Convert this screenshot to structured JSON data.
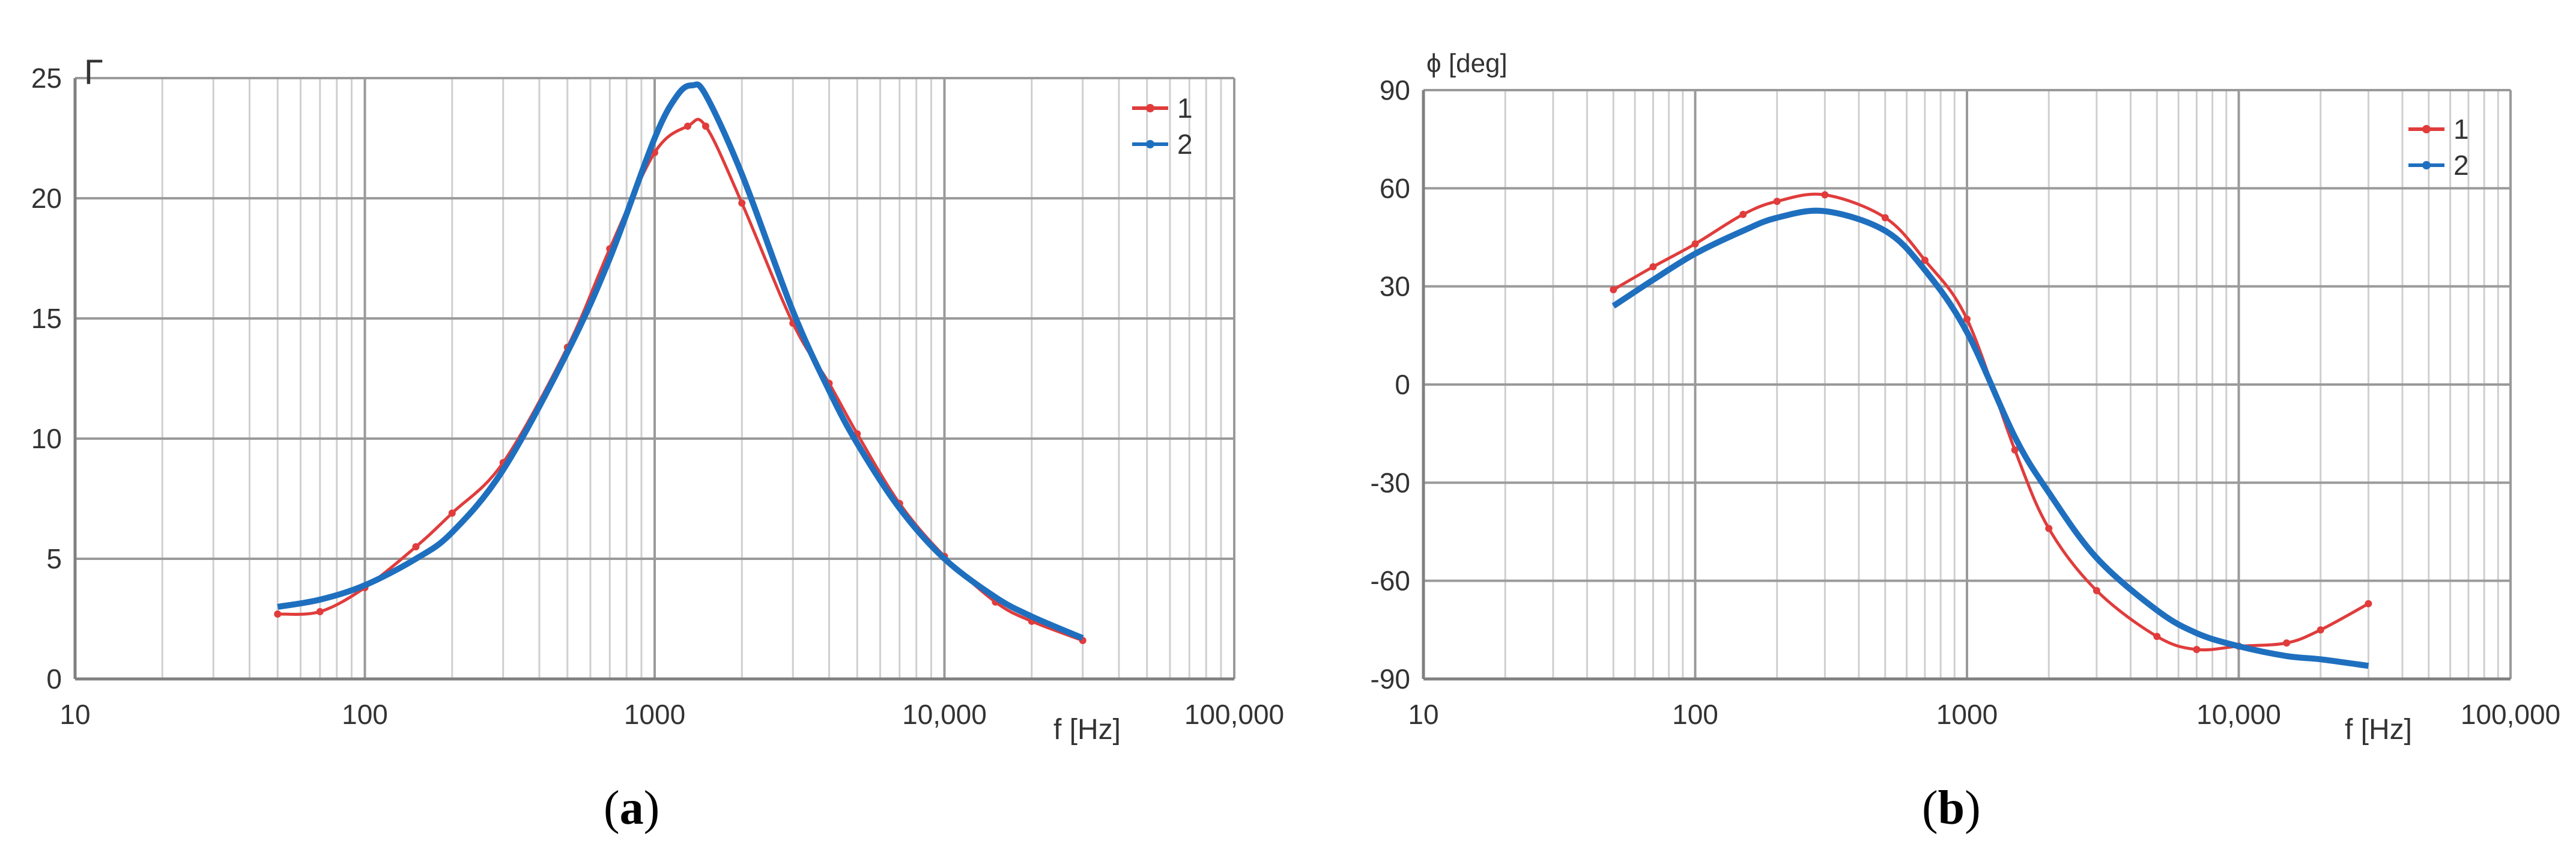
{
  "captions": {
    "a": {
      "open": "(",
      "letter": "a",
      "close": ")"
    },
    "b": {
      "open": "(",
      "letter": "b",
      "close": ")"
    }
  },
  "chart_data": [
    {
      "type": "line",
      "panel": "a",
      "ylabel": "Γ",
      "xlabel": "f [Hz]",
      "xscale": "log",
      "xlim": [
        10,
        100000
      ],
      "ylim": [
        0,
        25
      ],
      "yticks": [
        0,
        5,
        10,
        15,
        20,
        25
      ],
      "xticks": [
        10,
        100,
        1000,
        10000,
        100000
      ],
      "xtick_labels": [
        "10",
        "100",
        "1000",
        "10,000",
        "100,000"
      ],
      "grid": true,
      "legend_position": "top-right",
      "series": [
        {
          "name": "1",
          "color": "#e03c3c",
          "x": [
            50,
            70,
            100,
            150,
            200,
            300,
            500,
            700,
            1000,
            1300,
            1500,
            2000,
            3000,
            4000,
            5000,
            7000,
            10000,
            15000,
            20000,
            30000
          ],
          "y": [
            2.7,
            2.8,
            3.8,
            5.5,
            6.9,
            9.0,
            13.8,
            17.9,
            21.9,
            23.0,
            23.0,
            19.8,
            14.8,
            12.3,
            10.2,
            7.3,
            5.1,
            3.2,
            2.4,
            1.6
          ]
        },
        {
          "name": "2",
          "color": "#1f6fbf",
          "x": [
            50,
            70,
            100,
            150,
            200,
            300,
            500,
            700,
            1000,
            1200,
            1350,
            1500,
            2000,
            3000,
            4000,
            5000,
            7000,
            10000,
            15000,
            20000,
            30000
          ],
          "y": [
            3.0,
            3.3,
            3.9,
            5.0,
            6.1,
            8.7,
            13.6,
            17.5,
            22.5,
            24.3,
            24.7,
            24.3,
            21.0,
            15.3,
            12.0,
            9.8,
            7.1,
            5.0,
            3.4,
            2.6,
            1.7
          ]
        }
      ]
    },
    {
      "type": "line",
      "panel": "b",
      "ylabel": "ϕ [deg]",
      "xlabel": "f [Hz]",
      "xscale": "log",
      "xlim": [
        10,
        100000
      ],
      "ylim": [
        -90,
        90
      ],
      "yticks": [
        -90,
        -60,
        -30,
        0,
        30,
        60,
        90
      ],
      "xticks": [
        10,
        100,
        1000,
        10000,
        100000
      ],
      "xtick_labels": [
        "10",
        "100",
        "1000",
        "10,000",
        "100,000"
      ],
      "grid": true,
      "legend_position": "top-right",
      "series": [
        {
          "name": "1",
          "color": "#e03c3c",
          "x": [
            50,
            70,
            100,
            150,
            200,
            300,
            500,
            700,
            1000,
            1500,
            2000,
            3000,
            5000,
            7000,
            10000,
            15000,
            20000,
            30000
          ],
          "y": [
            29,
            36,
            43,
            52,
            56,
            58,
            51,
            38,
            20,
            -20,
            -44,
            -63,
            -77,
            -81,
            -80,
            -79,
            -75,
            -67
          ]
        },
        {
          "name": "2",
          "color": "#1f6fbf",
          "x": [
            50,
            70,
            100,
            150,
            200,
            300,
            500,
            700,
            1000,
            1500,
            2000,
            3000,
            5000,
            7000,
            10000,
            15000,
            20000,
            30000
          ],
          "y": [
            24,
            32,
            40,
            47,
            51,
            53,
            47,
            35,
            16,
            -16,
            -33,
            -53,
            -69,
            -76,
            -80,
            -83,
            -84,
            -86
          ]
        }
      ]
    }
  ]
}
